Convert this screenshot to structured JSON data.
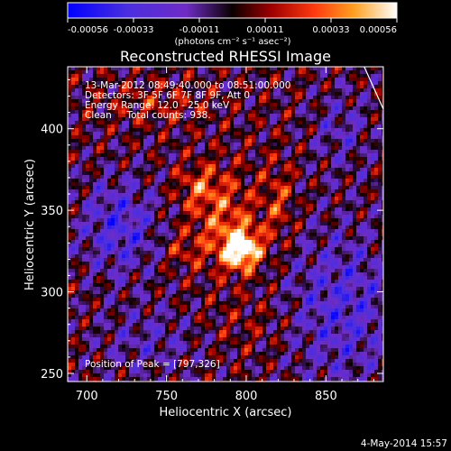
{
  "chart_data": {
    "type": "heatmap",
    "title": "Reconstructed RHESSI Image",
    "xlabel": "Heliocentric X (arcsec)",
    "ylabel": "Heliocentric Y (arcsec)",
    "xlim": [
      688,
      886
    ],
    "ylim": [
      245,
      438
    ],
    "x_ticks": [
      700,
      750,
      800,
      850
    ],
    "y_ticks": [
      250,
      300,
      350,
      400
    ],
    "colorbar": {
      "range": [
        -0.00056,
        0.00056
      ],
      "ticks": [
        "-0.00056",
        "-0.00033",
        "-0.00011",
        "0.00011",
        "0.00033",
        "0.00056"
      ],
      "units_label": "(photons cm⁻² s⁻¹ asec⁻²)",
      "colors": [
        "#0000ff",
        "#5a2fd6",
        "#7a2cc7",
        "#000000",
        "#8b0000",
        "#e0201a",
        "#ff8a1a",
        "#ffd24a",
        "#ffffff"
      ]
    },
    "annotations": {
      "time": "13-Mar-2012 08:49:40.000 to 08:51:00.000",
      "detectors": "Detectors: 3F 5F 6F 7F 8F 9F, Att 0",
      "energy": "Energy Range: 12.0 - 25.0 keV",
      "method": "Clean     Total counts: 938.",
      "peak": "Position of Peak = [797,326]"
    },
    "peak": [
      797,
      326
    ],
    "limb_line": [
      [
        874,
        438
      ],
      [
        886,
        412
      ]
    ],
    "date_stamp": "4-May-2014 15:57"
  }
}
